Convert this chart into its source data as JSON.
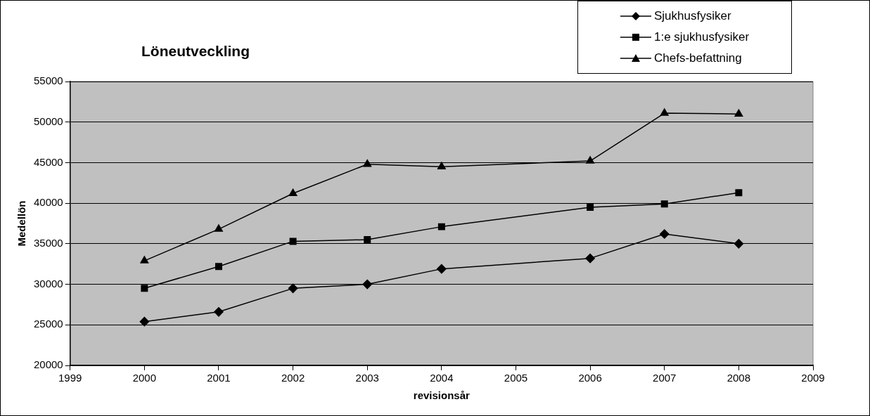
{
  "chart_data": {
    "type": "line",
    "title": "Löneutveckling",
    "xlabel": "revisionsår",
    "ylabel": "Medellön",
    "x": [
      2000,
      2001,
      2002,
      2003,
      2004,
      2006,
      2007,
      2008
    ],
    "series": [
      {
        "name": "Sjukhusfysiker",
        "color": "#000000",
        "marker": "diamond",
        "values": [
          25400,
          26600,
          29500,
          30000,
          31900,
          33200,
          36200,
          35000
        ]
      },
      {
        "name": "1:e sjukhusfysiker",
        "color": "#000000",
        "marker": "square",
        "values": [
          29500,
          32200,
          35300,
          35500,
          37100,
          39500,
          39900,
          41300
        ]
      },
      {
        "name": "Chefs-befattning",
        "color": "#000000",
        "marker": "triangle",
        "values": [
          32900,
          36800,
          41200,
          44800,
          44500,
          45200,
          51100,
          51000
        ]
      }
    ],
    "xlim": [
      1999,
      2009
    ],
    "xticks": [
      1999,
      2000,
      2001,
      2002,
      2003,
      2004,
      2005,
      2006,
      2007,
      2008,
      2009
    ],
    "ylim": [
      20000,
      55000
    ],
    "yticks": [
      20000,
      25000,
      30000,
      35000,
      40000,
      45000,
      50000,
      55000
    ],
    "grid": "y",
    "legend": "top right",
    "line_style": "solid"
  }
}
